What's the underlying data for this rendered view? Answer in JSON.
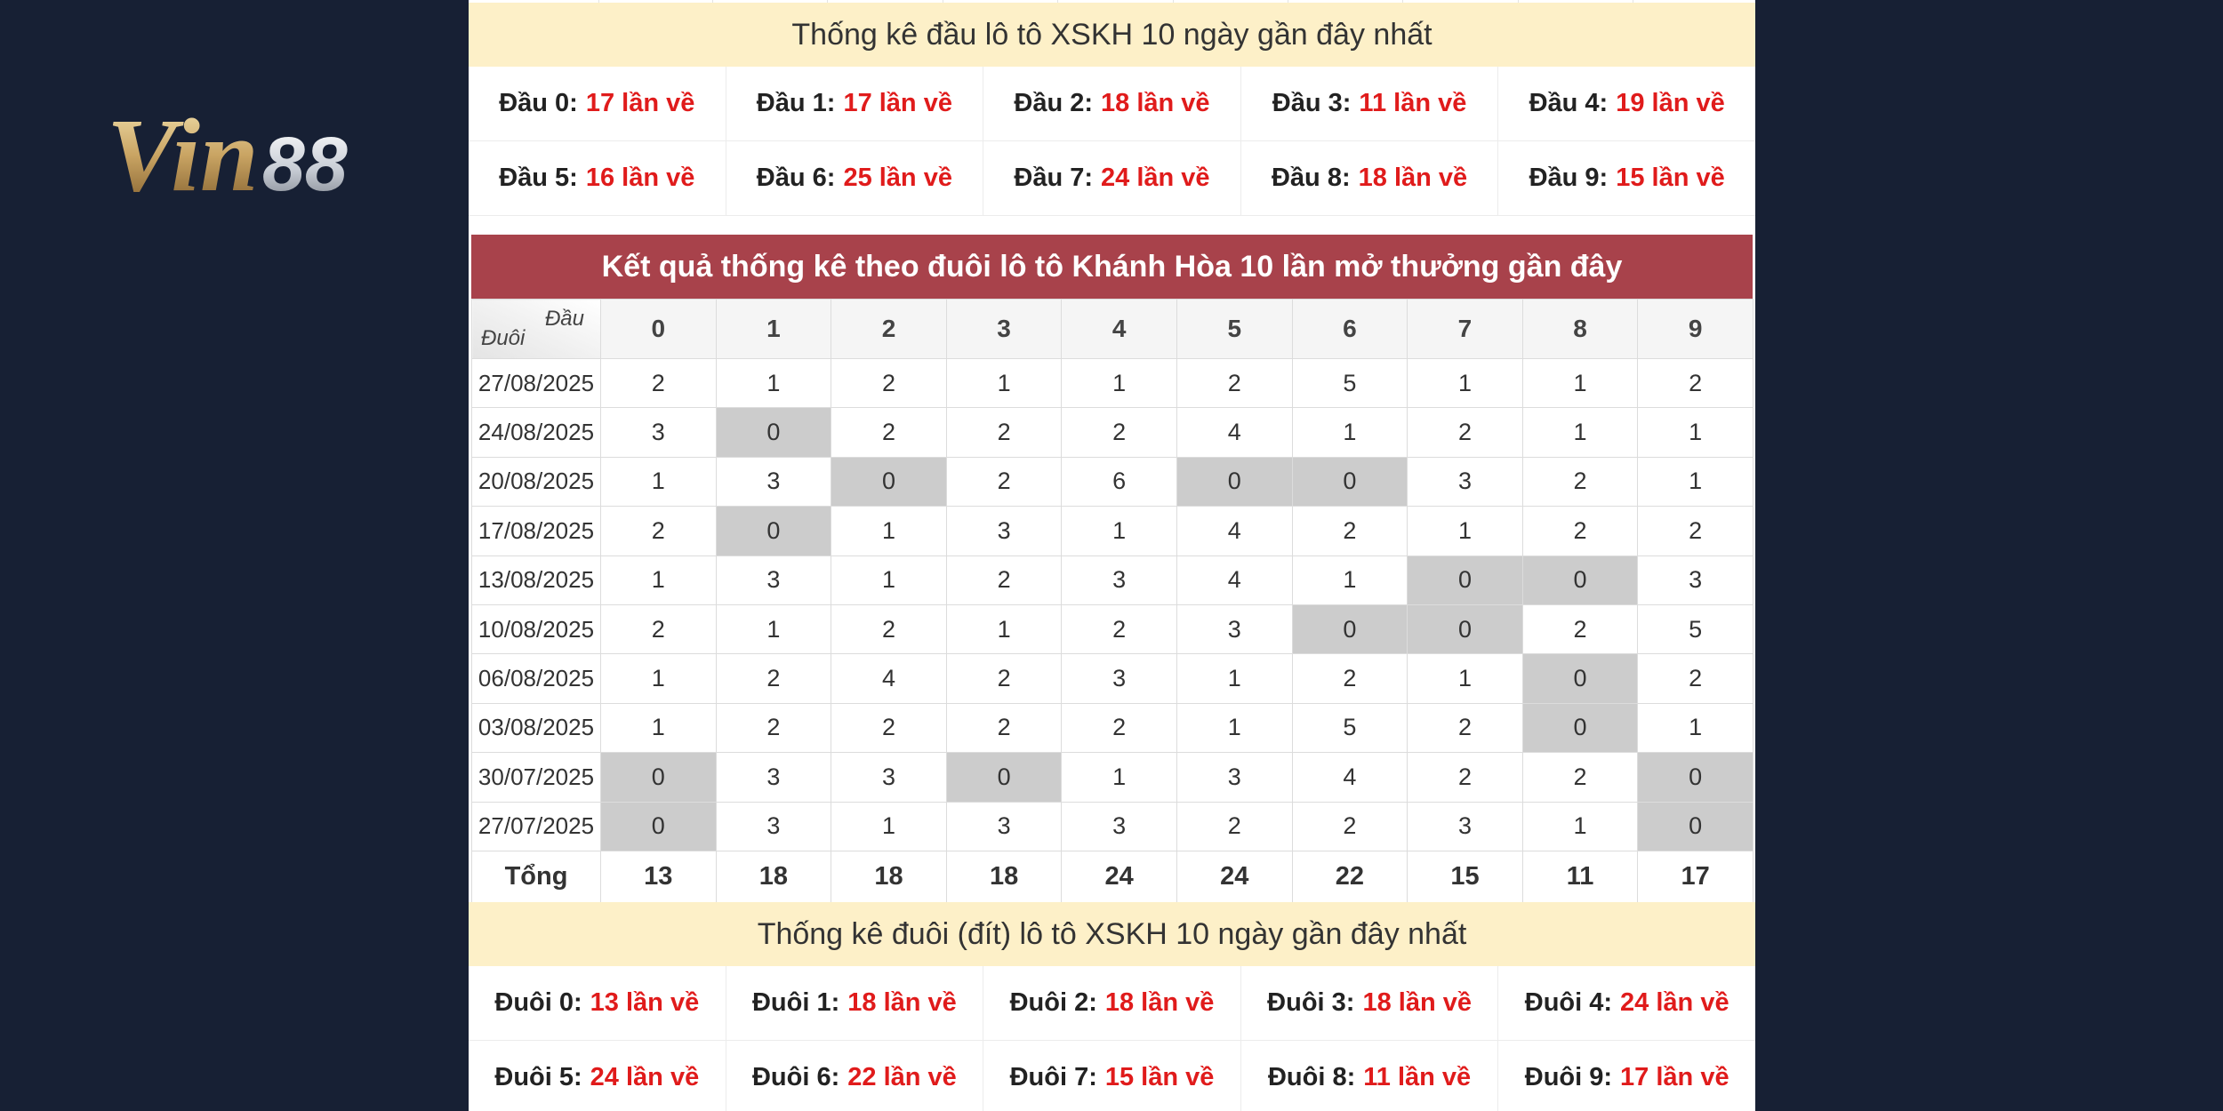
{
  "brand": {
    "logo_text": "Vin88"
  },
  "dau_section": {
    "title": "Thống kê đầu lô tô XSKH 10 ngày gần đây nhất",
    "rows": [
      [
        {
          "label": "Đầu 0:",
          "value": "17 lần về"
        },
        {
          "label": "Đầu 1:",
          "value": "17 lần về"
        },
        {
          "label": "Đầu 2:",
          "value": "18 lần về"
        },
        {
          "label": "Đầu 3:",
          "value": "11 lần về"
        },
        {
          "label": "Đầu 4:",
          "value": "19 lần về"
        }
      ],
      [
        {
          "label": "Đầu 5:",
          "value": "16 lần về"
        },
        {
          "label": "Đầu 6:",
          "value": "25 lần về"
        },
        {
          "label": "Đầu 7:",
          "value": "24 lần về"
        },
        {
          "label": "Đầu 8:",
          "value": "18 lần về"
        },
        {
          "label": "Đầu 9:",
          "value": "15 lần về"
        }
      ]
    ]
  },
  "results_table": {
    "title": "Kết quả thống kê theo đuôi lô tô Khánh Hòa 10 lần mở thưởng gần đây",
    "corner_top": "Đầu",
    "corner_bottom": "Đuôi",
    "columns": [
      "0",
      "1",
      "2",
      "3",
      "4",
      "5",
      "6",
      "7",
      "8",
      "9"
    ],
    "rows": [
      {
        "date": "27/08/2025",
        "values": [
          "2",
          "1",
          "2",
          "1",
          "1",
          "2",
          "5",
          "1",
          "1",
          "2"
        ]
      },
      {
        "date": "24/08/2025",
        "values": [
          "3",
          "0",
          "2",
          "2",
          "2",
          "4",
          "1",
          "2",
          "1",
          "1"
        ]
      },
      {
        "date": "20/08/2025",
        "values": [
          "1",
          "3",
          "0",
          "2",
          "6",
          "0",
          "0",
          "3",
          "2",
          "1"
        ]
      },
      {
        "date": "17/08/2025",
        "values": [
          "2",
          "0",
          "1",
          "3",
          "1",
          "4",
          "2",
          "1",
          "2",
          "2"
        ]
      },
      {
        "date": "13/08/2025",
        "values": [
          "1",
          "3",
          "1",
          "2",
          "3",
          "4",
          "1",
          "0",
          "0",
          "3"
        ]
      },
      {
        "date": "10/08/2025",
        "values": [
          "2",
          "1",
          "2",
          "1",
          "2",
          "3",
          "0",
          "0",
          "2",
          "5"
        ]
      },
      {
        "date": "06/08/2025",
        "values": [
          "1",
          "2",
          "4",
          "2",
          "3",
          "1",
          "2",
          "1",
          "0",
          "2"
        ]
      },
      {
        "date": "03/08/2025",
        "values": [
          "1",
          "2",
          "2",
          "2",
          "2",
          "1",
          "5",
          "2",
          "0",
          "1"
        ]
      },
      {
        "date": "30/07/2025",
        "values": [
          "0",
          "3",
          "3",
          "0",
          "1",
          "3",
          "4",
          "2",
          "2",
          "0"
        ]
      },
      {
        "date": "27/07/2025",
        "values": [
          "0",
          "3",
          "1",
          "3",
          "3",
          "2",
          "2",
          "3",
          "1",
          "0"
        ]
      }
    ],
    "total_label": "Tổng",
    "totals": [
      "13",
      "18",
      "18",
      "18",
      "24",
      "24",
      "22",
      "15",
      "11",
      "17"
    ]
  },
  "duoi_section": {
    "title": "Thống kê đuôi (đít) lô tô XSKH 10 ngày gần đây nhất",
    "rows": [
      [
        {
          "label": "Đuôi 0:",
          "value": "13 lần về"
        },
        {
          "label": "Đuôi 1:",
          "value": "18 lần về"
        },
        {
          "label": "Đuôi 2:",
          "value": "18 lần về"
        },
        {
          "label": "Đuôi 3:",
          "value": "18 lần về"
        },
        {
          "label": "Đuôi 4:",
          "value": "24 lần về"
        }
      ],
      [
        {
          "label": "Đuôi 5:",
          "value": "24 lần về"
        },
        {
          "label": "Đuôi 6:",
          "value": "22 lần về"
        },
        {
          "label": "Đuôi 7:",
          "value": "15 lần về"
        },
        {
          "label": "Đuôi 8:",
          "value": "11 lần về"
        },
        {
          "label": "Đuôi 9:",
          "value": "17 lần về"
        }
      ]
    ]
  },
  "colors": {
    "page_background": "#172034",
    "header_yellow": "#fdf0c8",
    "header_red": "#a8424b",
    "value_red": "#e01b1b",
    "zero_cell_gray": "#cccccc"
  }
}
